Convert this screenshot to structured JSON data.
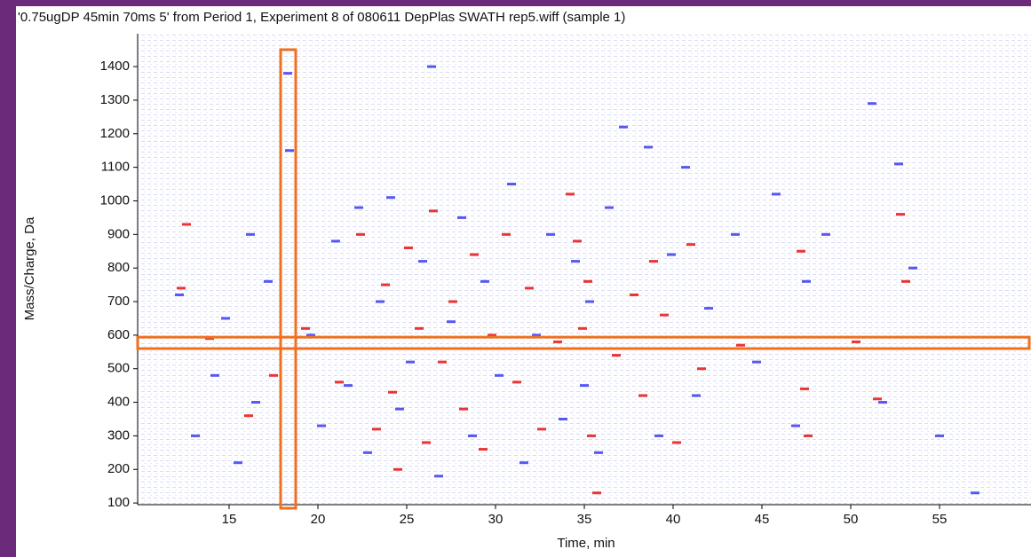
{
  "chart_data": {
    "type": "heatmap-scatter",
    "title": "'0.75ugDP 45min 70ms 5' from Period 1, Experiment 8 of 080611 DepPlas SWATH rep5.wiff (sample 1)",
    "x_label": "Time, min",
    "y_label": "Mass/Charge, Da",
    "xlim": [
      9.85,
      60.15
    ],
    "ylim": [
      95,
      1498
    ],
    "xticks": [
      15,
      20,
      25,
      30,
      35,
      40,
      45,
      50,
      55
    ],
    "yticks": [
      100,
      200,
      300,
      400,
      500,
      600,
      700,
      800,
      900,
      1000,
      1100,
      1200,
      1300,
      1400
    ],
    "series": [
      {
        "color": "#3a3af0",
        "x": [
          12.2,
          12.5,
          13.1,
          14.2,
          14.8,
          15.5,
          16.2,
          16.5,
          17.2,
          18.3,
          18.4,
          19.6,
          20.2,
          21.0,
          21.7,
          22.3,
          22.8,
          23.5,
          24.1,
          24.6,
          25.2,
          25.9,
          26.4,
          26.8,
          27.5,
          28.1,
          28.7,
          29.4,
          30.2,
          30.9,
          31.6,
          32.3,
          33.1,
          33.8,
          34.5,
          35.0,
          35.3,
          35.8,
          36.4,
          37.2,
          37.9,
          38.6,
          39.2,
          39.9,
          40.7,
          41.3,
          42.0,
          43.5,
          44.7,
          45.8,
          46.9,
          47.5,
          48.6,
          49.8,
          51.2,
          51.8,
          52.7,
          53.5,
          55.0,
          57.0
        ],
        "values": [
          720,
          560,
          300,
          480,
          650,
          220,
          900,
          400,
          760,
          1380,
          1150,
          600,
          330,
          880,
          450,
          980,
          250,
          700,
          1010,
          380,
          520,
          820,
          1400,
          180,
          640,
          950,
          300,
          760,
          480,
          1050,
          220,
          600,
          900,
          350,
          820,
          450,
          700,
          250,
          980,
          1220,
          560,
          1160,
          300,
          840,
          1100,
          420,
          680,
          900,
          520,
          1020,
          330,
          760,
          900,
          560,
          1290,
          400,
          1110,
          800,
          300,
          130
        ]
      },
      {
        "color": "#e81010",
        "x": [
          12.3,
          12.6,
          13.9,
          16.1,
          17.5,
          19.3,
          21.2,
          22.4,
          22.9,
          23.3,
          23.8,
          24.2,
          24.5,
          25.1,
          25.7,
          26.1,
          26.5,
          27.0,
          27.6,
          28.2,
          28.8,
          29.3,
          29.8,
          30.6,
          31.2,
          31.9,
          32.6,
          33.5,
          34.2,
          34.6,
          34.9,
          35.2,
          35.4,
          35.7,
          36.8,
          37.8,
          38.3,
          38.9,
          39.5,
          40.2,
          41.0,
          41.6,
          43.8,
          47.2,
          47.4,
          47.6,
          50.3,
          51.5,
          52.8,
          53.1
        ],
        "values": [
          740,
          930,
          590,
          360,
          480,
          620,
          460,
          900,
          560,
          320,
          750,
          430,
          200,
          860,
          620,
          280,
          970,
          520,
          700,
          380,
          840,
          260,
          600,
          900,
          460,
          740,
          320,
          580,
          1020,
          880,
          620,
          760,
          300,
          130,
          540,
          720,
          420,
          820,
          660,
          280,
          870,
          500,
          570,
          850,
          440,
          300,
          580,
          410,
          960,
          760
        ]
      }
    ],
    "highlights": [
      {
        "color": "#f07020",
        "xlim": [
          17.9,
          18.75
        ]
      },
      {
        "color": "#f07020",
        "ylim": [
          560,
          594
        ]
      }
    ]
  }
}
